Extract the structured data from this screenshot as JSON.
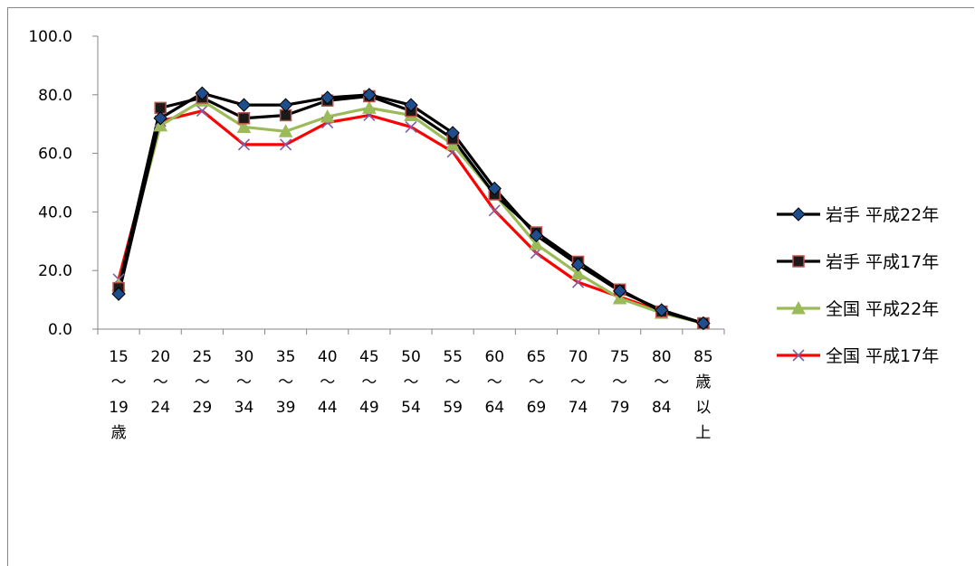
{
  "chart_data": {
    "type": "line",
    "title": "",
    "xlabel": "",
    "ylabel": "",
    "ylim": [
      0,
      100
    ],
    "yticks": [
      "100.0",
      "80.0",
      "60.0",
      "40.0",
      "20.0",
      "0.0"
    ],
    "categories": [
      [
        "15",
        "～",
        "19",
        "歳"
      ],
      [
        "20",
        "～",
        "24"
      ],
      [
        "25",
        "～",
        "29"
      ],
      [
        "30",
        "～",
        "34"
      ],
      [
        "35",
        "～",
        "39"
      ],
      [
        "40",
        "～",
        "44"
      ],
      [
        "45",
        "～",
        "49"
      ],
      [
        "50",
        "～",
        "54"
      ],
      [
        "55",
        "～",
        "59"
      ],
      [
        "60",
        "～",
        "64"
      ],
      [
        "65",
        "～",
        "69"
      ],
      [
        "70",
        "～",
        "74"
      ],
      [
        "75",
        "～",
        "79"
      ],
      [
        "80",
        "～",
        "84"
      ],
      [
        "85",
        "歳",
        "以",
        "上"
      ]
    ],
    "legend_position": "right",
    "series": [
      {
        "name": "岩手 平成22年",
        "line_color": "#000000",
        "marker": "diamond",
        "marker_fill": "#1f4e8c",
        "values": [
          12.0,
          72.0,
          80.5,
          76.5,
          76.5,
          79.0,
          80.0,
          76.5,
          67.0,
          48.0,
          32.0,
          22.0,
          13.0,
          6.5,
          2.0
        ]
      },
      {
        "name": "岩手 平成17年",
        "line_color": "#000000",
        "marker": "square",
        "marker_fill": "#1a1a1a",
        "marker_stroke": "#c0504d",
        "values": [
          14.0,
          75.5,
          79.0,
          72.0,
          73.0,
          78.0,
          79.5,
          74.5,
          65.0,
          46.0,
          33.0,
          23.0,
          13.5,
          6.0,
          2.0
        ]
      },
      {
        "name": "全国 平成22年",
        "line_color": "#9bbb59",
        "marker": "triangle",
        "marker_fill": "#9bbb59",
        "values": [
          15.0,
          69.5,
          78.0,
          69.0,
          67.5,
          72.5,
          75.5,
          73.0,
          63.0,
          46.0,
          29.0,
          19.0,
          10.5,
          5.5,
          2.0
        ]
      },
      {
        "name": "全国 平成17年",
        "line_color": "#ff0000",
        "marker": "x",
        "marker_fill": "#7e5fa3",
        "values": [
          17.0,
          71.0,
          74.5,
          63.0,
          63.0,
          70.5,
          73.0,
          69.0,
          60.5,
          40.5,
          26.0,
          16.0,
          11.0,
          6.0,
          2.0
        ]
      }
    ]
  }
}
